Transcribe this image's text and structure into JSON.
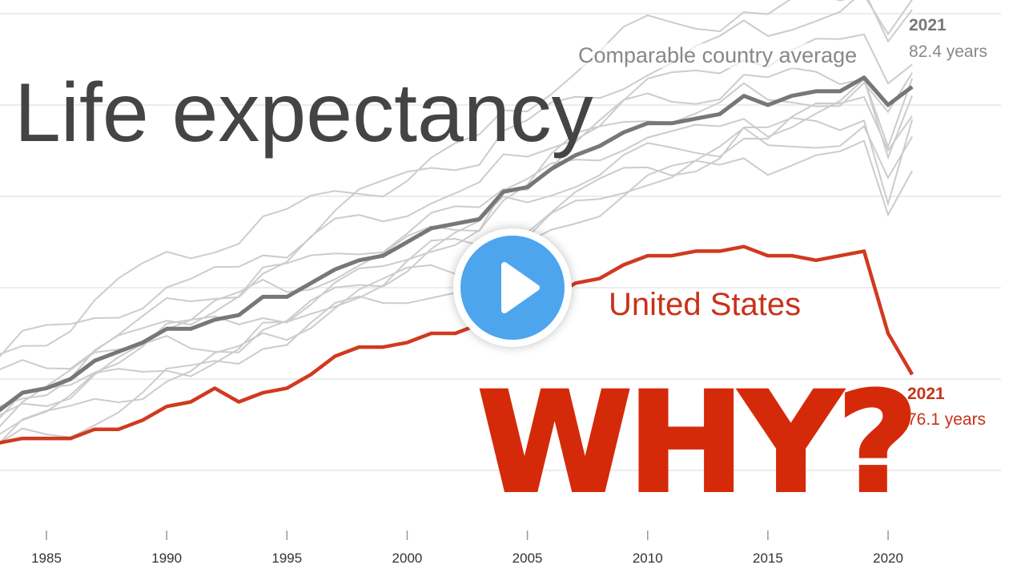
{
  "title": "Life expectancy",
  "overlay_text": "WHY?",
  "play_button": {
    "icon": "play-icon",
    "color": "#4da5ee"
  },
  "chart_data": {
    "type": "line",
    "xlabel": "",
    "ylabel": "",
    "xlim": [
      1983,
      2022
    ],
    "ylim": [
      72,
      84.3
    ],
    "x_ticks": [
      "1985",
      "1990",
      "1995",
      "2000",
      "2005",
      "2010",
      "2015",
      "2020"
    ],
    "y_gridlines": [
      74,
      76,
      78,
      80,
      82,
      84
    ],
    "grid": true,
    "x": [
      1983,
      1984,
      1985,
      1986,
      1987,
      1988,
      1989,
      1990,
      1991,
      1992,
      1993,
      1994,
      1995,
      1996,
      1997,
      1998,
      1999,
      2000,
      2001,
      2002,
      2003,
      2004,
      2005,
      2006,
      2007,
      2008,
      2009,
      2010,
      2011,
      2012,
      2013,
      2014,
      2015,
      2016,
      2017,
      2018,
      2019,
      2020,
      2021
    ],
    "series": [
      {
        "name": "United States",
        "label": "United States",
        "color": "#d03a1f",
        "end_year": "2021",
        "end_value": "76.1 years",
        "values": [
          74.6,
          74.7,
          74.7,
          74.7,
          74.9,
          74.9,
          75.1,
          75.4,
          75.5,
          75.8,
          75.5,
          75.7,
          75.8,
          76.1,
          76.5,
          76.7,
          76.7,
          76.8,
          77.0,
          77.0,
          77.2,
          77.6,
          77.6,
          77.8,
          78.1,
          78.2,
          78.5,
          78.7,
          78.7,
          78.8,
          78.8,
          78.9,
          78.7,
          78.7,
          78.6,
          78.7,
          78.8,
          77.0,
          76.1
        ]
      },
      {
        "name": "Comparable country average",
        "label": "Comparable country average",
        "color": "#777777",
        "end_year": "2021",
        "end_value": "82.4 years",
        "values": [
          75.3,
          75.7,
          75.8,
          76.0,
          76.4,
          76.6,
          76.8,
          77.1,
          77.1,
          77.3,
          77.4,
          77.8,
          77.8,
          78.1,
          78.4,
          78.6,
          78.7,
          79.0,
          79.3,
          79.4,
          79.5,
          80.1,
          80.2,
          80.6,
          80.9,
          81.1,
          81.4,
          81.6,
          81.6,
          81.7,
          81.8,
          82.2,
          82.0,
          82.2,
          82.3,
          82.3,
          82.6,
          82.0,
          82.4
        ]
      }
    ],
    "comparable_countries_color": "#cccccc",
    "comparable_country_offsets": [
      {
        "offset": 1.6,
        "covid_dip": 0.5
      },
      {
        "offset": 0.9,
        "covid_dip": 0.2
      },
      {
        "offset": 0.4,
        "covid_dip": 0.9
      },
      {
        "offset": 0.1,
        "covid_dip": 0.3
      },
      {
        "offset": -0.3,
        "covid_dip": 1.1
      },
      {
        "offset": -0.6,
        "covid_dip": 0.4
      },
      {
        "offset": -0.9,
        "covid_dip": 1.3
      },
      {
        "offset": -1.2,
        "covid_dip": 0.6
      },
      {
        "offset": -1.5,
        "covid_dip": 0.8
      },
      {
        "offset": 2.2,
        "covid_dip": 0.2
      }
    ]
  }
}
